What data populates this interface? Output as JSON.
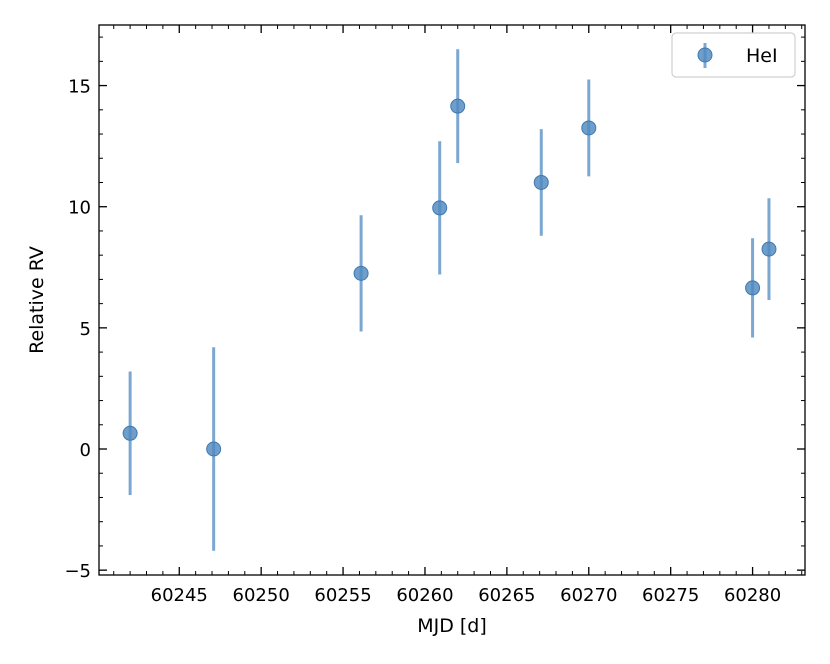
{
  "chart_data": {
    "type": "scatter",
    "xlabel": "MJD [d]",
    "ylabel": "Relative RV",
    "xlim": [
      60240.1,
      60283.2
    ],
    "ylim": [
      -5.2,
      17.5
    ],
    "x_ticks": [
      60245,
      60250,
      60255,
      60260,
      60265,
      60270,
      60275,
      60280
    ],
    "x_tick_labels": [
      "60245",
      "60250",
      "60255",
      "60260",
      "60265",
      "60270",
      "60275",
      "60280"
    ],
    "y_ticks": [
      -5,
      0,
      5,
      10,
      15
    ],
    "y_tick_labels": [
      "−5",
      "0",
      "5",
      "10",
      "15"
    ],
    "x_minor_step": 1,
    "y_minor_step": 1,
    "grid": false,
    "legend_position": "top-right",
    "series": [
      {
        "name": "HeI",
        "color": "#4f89c0",
        "points": [
          {
            "x": 60242.0,
            "y": 0.65,
            "err": 2.55
          },
          {
            "x": 60247.1,
            "y": 0.0,
            "err": 4.2
          },
          {
            "x": 60256.1,
            "y": 7.25,
            "err": 2.4
          },
          {
            "x": 60260.9,
            "y": 9.95,
            "err": 2.75
          },
          {
            "x": 60262.0,
            "y": 14.15,
            "err": 2.35
          },
          {
            "x": 60267.1,
            "y": 11.0,
            "err": 2.2
          },
          {
            "x": 60270.0,
            "y": 13.25,
            "err": 2.0
          },
          {
            "x": 60280.0,
            "y": 6.65,
            "err": 2.05
          },
          {
            "x": 60281.0,
            "y": 8.25,
            "err": 2.1
          }
        ]
      }
    ]
  }
}
